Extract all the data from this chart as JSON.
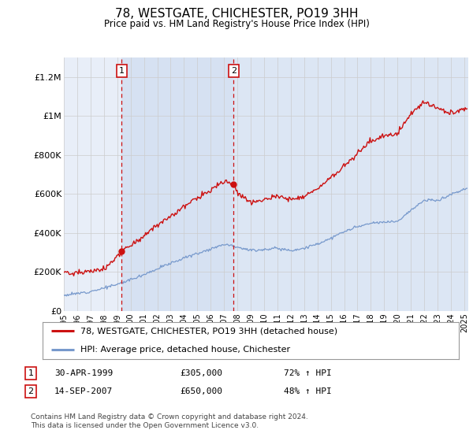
{
  "title": "78, WESTGATE, CHICHESTER, PO19 3HH",
  "subtitle": "Price paid vs. HM Land Registry's House Price Index (HPI)",
  "ylim": [
    0,
    1300000
  ],
  "yticks": [
    0,
    200000,
    400000,
    600000,
    800000,
    1000000,
    1200000
  ],
  "ytick_labels": [
    "£0",
    "£200K",
    "£400K",
    "£600K",
    "£800K",
    "£1M",
    "£1.2M"
  ],
  "background_color": "#ffffff",
  "plot_bg_color": "#e8eef8",
  "grid_color": "#cccccc",
  "sale1_date": 1999.33,
  "sale1_price": 305000,
  "sale1_label": "1",
  "sale2_date": 2007.71,
  "sale2_price": 650000,
  "sale2_label": "2",
  "legend_line1": "78, WESTGATE, CHICHESTER, PO19 3HH (detached house)",
  "legend_line2": "HPI: Average price, detached house, Chichester",
  "table_row1": [
    "1",
    "30-APR-1999",
    "£305,000",
    "72% ↑ HPI"
  ],
  "table_row2": [
    "2",
    "14-SEP-2007",
    "£650,000",
    "48% ↑ HPI"
  ],
  "footer": "Contains HM Land Registry data © Crown copyright and database right 2024.\nThis data is licensed under the Open Government Licence v3.0.",
  "hpi_color": "#7799cc",
  "price_color": "#cc1111",
  "sale_marker_color": "#cc1111",
  "shade1_color": "#dde8f5",
  "shade2_color": "#dde8f5",
  "xmin": 1995,
  "xmax": 2025.3
}
